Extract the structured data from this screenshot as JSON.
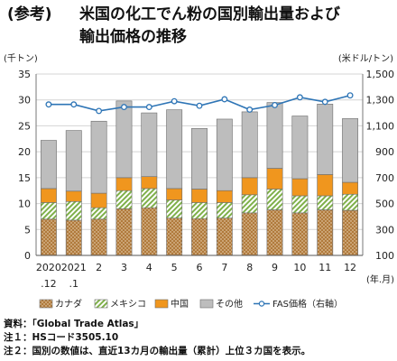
{
  "title": {
    "tag": "(参考)",
    "line1": "米国の化工でん粉の国別輸出量および",
    "line2": "輸出価格の推移"
  },
  "chart_data": {
    "type": "bar",
    "stacked": true,
    "left_unit": "(千トン)",
    "right_unit": "(米ドル/トン)",
    "x_unit": "(年.月)",
    "categories": [
      "2020.12",
      "2021.1",
      "2",
      "3",
      "4",
      "5",
      "6",
      "7",
      "8",
      "9",
      "10",
      "11",
      "12"
    ],
    "x_tick_top": [
      "2020",
      "2021",
      "2",
      "3",
      "4",
      "5",
      "6",
      "7",
      "8",
      "9",
      "10",
      "11",
      "12"
    ],
    "x_tick_bottom": [
      ".12",
      ".1",
      "",
      "",
      "",
      "",
      "",
      "",
      "",
      "",
      "",
      "",
      ""
    ],
    "ylim_left": [
      0,
      35
    ],
    "yticks_left": [
      "0",
      "5",
      "10",
      "15",
      "20",
      "25",
      "30",
      "35"
    ],
    "ylim_right": [
      100,
      1500
    ],
    "yticks_right": [
      "100",
      "300",
      "500",
      "700",
      "900",
      "1,100",
      "1,300",
      "1,500"
    ],
    "series": [
      {
        "name": "カナダ",
        "color": "#b07a3c",
        "pattern": "dots",
        "values": [
          7.0,
          6.8,
          7.0,
          9.0,
          9.2,
          7.2,
          7.1,
          7.2,
          8.2,
          8.8,
          8.2,
          8.8,
          8.7
        ]
      },
      {
        "name": "メキシコ",
        "color": "#8fbf5a",
        "pattern": "hatch",
        "values": [
          3.2,
          3.6,
          2.2,
          3.5,
          3.7,
          3.5,
          3.1,
          3.0,
          3.5,
          4.0,
          3.3,
          2.7,
          3.1
        ]
      },
      {
        "name": "中国",
        "color": "#f0961e",
        "pattern": "solid",
        "values": [
          2.7,
          2.0,
          2.8,
          2.5,
          2.3,
          2.2,
          2.6,
          2.3,
          3.3,
          4.0,
          3.3,
          4.1,
          2.3
        ]
      },
      {
        "name": "その他",
        "color": "#bdbdbd",
        "pattern": "solid",
        "values": [
          9.3,
          11.7,
          13.9,
          14.8,
          12.3,
          15.2,
          11.7,
          13.8,
          12.7,
          12.7,
          12.1,
          13.6,
          12.3
        ]
      }
    ],
    "line_series": {
      "name": "FAS価格（右軸）",
      "color": "#2e75b6",
      "values": [
        1265,
        1265,
        1215,
        1245,
        1245,
        1290,
        1255,
        1305,
        1225,
        1260,
        1320,
        1285,
        1335
      ]
    },
    "grid": true,
    "legend_position": "bottom"
  },
  "notes": [
    "資料：「Global Trade Atlas」",
    "注１：HSコード3505.10",
    "注２：国別の数値は、直近13カ月の輸出量（累計）上位３カ国を表示。"
  ]
}
